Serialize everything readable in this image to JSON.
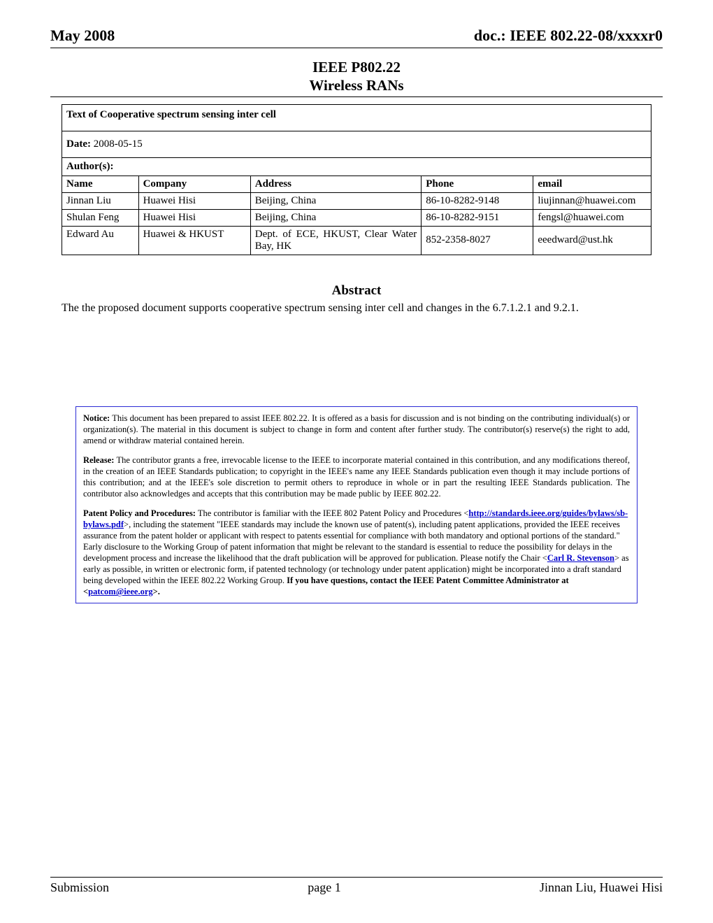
{
  "header": {
    "left": "May 2008",
    "right": "doc.: IEEE 802.22-08/xxxxr0"
  },
  "title1": "IEEE P802.22",
  "title2": "Wireless RANs",
  "document_title": "Text of Cooperative spectrum sensing inter cell",
  "date_label": "Date:",
  "date_value": "2008-05-15",
  "authors_label": "Author(s):",
  "columns": {
    "name": "Name",
    "company": "Company",
    "address": "Address",
    "phone": "Phone",
    "email": "email"
  },
  "authors": [
    {
      "name": "Jinnan Liu",
      "company": "Huawei Hisi",
      "address": "Beijing, China",
      "phone": "86-10-8282-9148",
      "email": "liujinnan@huawei.com"
    },
    {
      "name": "Shulan Feng",
      "company": "Huawei Hisi",
      "address": "Beijing, China",
      "phone": "86-10-8282-9151",
      "email": "fengsl@huawei.com"
    },
    {
      "name": "Edward Au",
      "company": "Huawei & HKUST",
      "address": "Dept. of ECE, HKUST, Clear Water Bay, HK",
      "phone": "852-2358-8027",
      "email": "eeedward@ust.hk"
    }
  ],
  "abstract": {
    "heading": "Abstract",
    "text": "The the proposed document supports cooperative spectrum sensing inter cell and changes in the 6.7.1.2.1 and 9.2.1."
  },
  "notice": {
    "notice_label": "Notice:",
    "notice_text": "This document has been prepared to assist IEEE 802.22. It is offered as a basis for discussion and is not binding on the contributing individual(s) or organization(s). The material in this document is subject to change in form and content after further study. The contributor(s) reserve(s) the right to add, amend or withdraw material contained herein.",
    "release_label": "Release:",
    "release_text": "The contributor grants a free, irrevocable license to the IEEE to incorporate material contained in this contribution, and any modifications thereof, in the creation of an IEEE Standards publication; to copyright in the IEEE's name any IEEE Standards publication even though it may include portions of this contribution; and at the IEEE's sole discretion to permit others to reproduce in whole or in part the resulting IEEE Standards publication. The contributor also acknowledges and accepts that this contribution may be made public by IEEE 802.22.",
    "patent_label": "Patent Policy and Procedures:",
    "patent_text1": "The contributor is familiar with the IEEE 802 Patent Policy and Procedures <",
    "patent_link1": "http://standards.ieee.org/guides/bylaws/sb-bylaws.pdf",
    "patent_text2": ">, including the statement \"IEEE standards may include the known use of patent(s), including patent applications, provided the IEEE receives assurance from the patent holder or applicant with respect to patents essential for compliance with both mandatory and optional portions of the standard.\" Early disclosure to the Working Group of patent information that might be relevant to the standard is essential to reduce the possibility for delays in the development process and increase the likelihood that the draft publication will be approved for publication. Please notify the Chair <",
    "patent_link2": "Carl R. Stevenson",
    "patent_text3": "> as early as possible, in written or electronic form, if patented technology (or technology under patent application) might be incorporated into a draft standard being developed within the IEEE 802.22 Working Group. ",
    "patent_bold": "If you have questions, contact the IEEE Patent Committee Administrator at <",
    "patent_link3": "patcom@ieee.org",
    "patent_bold_end": ">."
  },
  "footer": {
    "left": "Submission",
    "center": "page 1",
    "right": "Jinnan Liu, Huawei Hisi"
  }
}
